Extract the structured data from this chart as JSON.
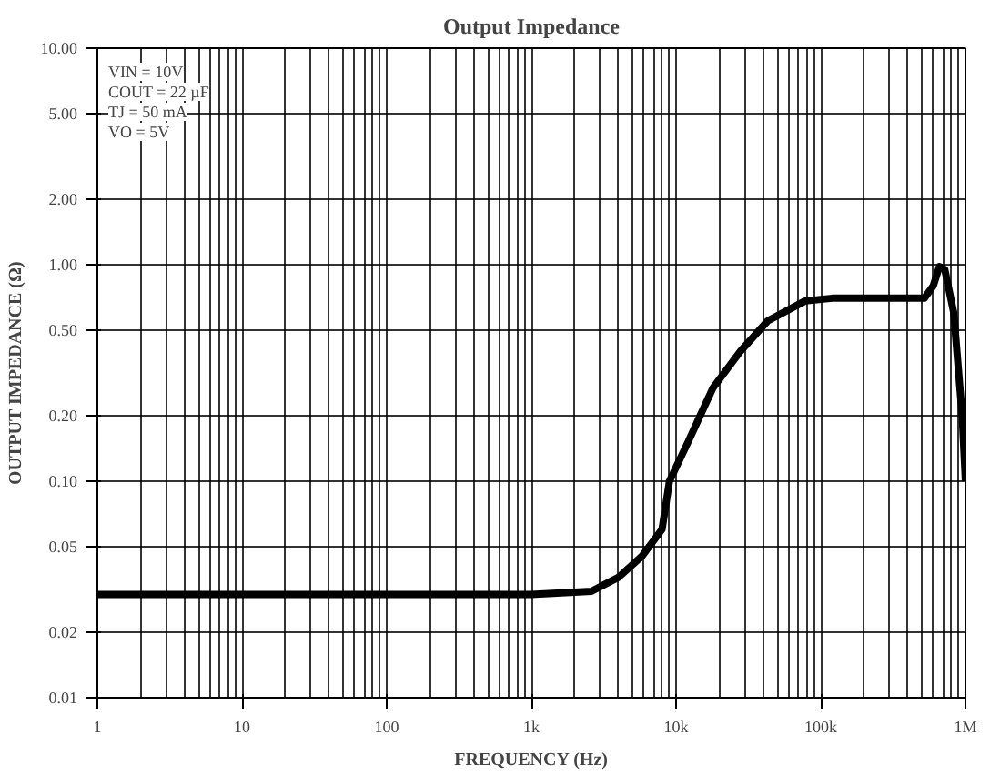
{
  "chart_data": {
    "type": "line",
    "title": "Output Impedance",
    "xlabel": "FREQUENCY (Hz)",
    "ylabel": "OUTPUT IMPEDANCE (Ω)",
    "annotations": [
      "VIN = 10V",
      "COUT = 22 µF",
      "TJ = 50 mA",
      "VO = 5V"
    ],
    "log": "xy",
    "grid": true,
    "line_style": "solid",
    "marker": "none",
    "xlim": [
      1,
      1000000
    ],
    "ylim": [
      0.01,
      10
    ],
    "xticks": [
      1,
      10,
      100,
      {
        "value": 1000,
        "label": "1k"
      },
      {
        "value": 10000,
        "label": "10k"
      },
      {
        "value": 100000,
        "label": "100k"
      },
      {
        "value": 1000000,
        "label": "1M"
      }
    ],
    "yticks": [
      {
        "value": 0.01,
        "label": "0.01"
      },
      {
        "value": 0.02,
        "label": "0.02"
      },
      {
        "value": 0.05,
        "label": "0.05"
      },
      {
        "value": 0.1,
        "label": "0.10"
      },
      {
        "value": 0.2,
        "label": "0.20"
      },
      {
        "value": 0.5,
        "label": "0.50"
      },
      {
        "value": 1,
        "label": "1.00"
      },
      {
        "value": 2,
        "label": "2.00"
      },
      {
        "value": 5,
        "label": "5.00"
      },
      {
        "value": 10,
        "label": "10.00"
      }
    ],
    "series": [
      {
        "color": "#000000",
        "x": [
          1,
          10,
          100,
          1000,
          2600,
          4000,
          5800,
          8000,
          9000,
          12000,
          18000,
          28000,
          43000,
          78000,
          120000,
          520000,
          600000,
          660000,
          720000,
          830000,
          950000,
          1000000
        ],
        "values": [
          0.03,
          0.03,
          0.03,
          0.03,
          0.031,
          0.036,
          0.045,
          0.06,
          0.1,
          0.15,
          0.27,
          0.4,
          0.55,
          0.68,
          0.7,
          0.7,
          0.8,
          0.98,
          0.95,
          0.6,
          0.2,
          0.1
        ]
      }
    ]
  }
}
